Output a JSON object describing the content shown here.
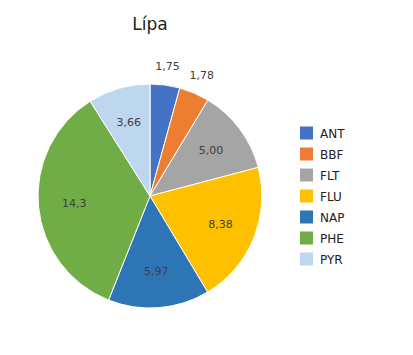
{
  "chart_data": {
    "type": "pie",
    "title": "Lípa",
    "categories": [
      "ANT",
      "BBF",
      "FLT",
      "FLU",
      "NAP",
      "PHE",
      "PYR"
    ],
    "values": [
      1.75,
      1.78,
      5.0,
      8.38,
      5.97,
      14.3,
      3.66
    ],
    "value_labels": [
      "1,75",
      "1,78",
      "5,00",
      "8,38",
      "5,97",
      "14,3",
      "3,66"
    ],
    "colors": [
      "#4472C4",
      "#ED7D31",
      "#A5A5A5",
      "#FFC000",
      "#2E75B6",
      "#70AD47",
      "#BDD7EE"
    ],
    "data_labels": true,
    "legend": "right"
  }
}
